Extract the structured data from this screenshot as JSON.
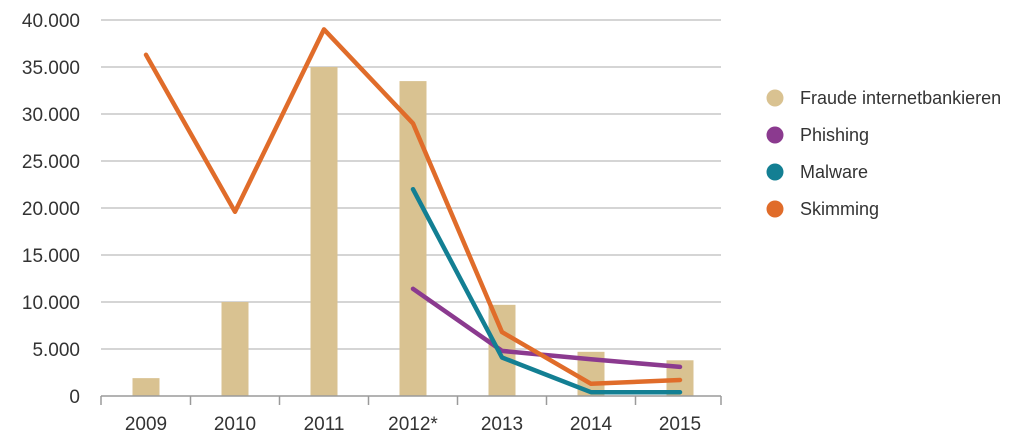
{
  "chart_data": {
    "type": "bar",
    "categories": [
      "2009",
      "2010",
      "2011",
      "2012*",
      "2013",
      "2014",
      "2015"
    ],
    "ylim": [
      0,
      40000
    ],
    "yticks": [
      {
        "value": 0,
        "label": "0"
      },
      {
        "value": 5000,
        "label": "5.000"
      },
      {
        "value": 10000,
        "label": "10.000"
      },
      {
        "value": 15000,
        "label": "15.000"
      },
      {
        "value": 20000,
        "label": "20.000"
      },
      {
        "value": 25000,
        "label": "25.000"
      },
      {
        "value": 30000,
        "label": "30.000"
      },
      {
        "value": 35000,
        "label": "35.000"
      },
      {
        "value": 40000,
        "label": "40.000"
      }
    ],
    "grid": true,
    "legend_position": "right",
    "series": [
      {
        "name": "Fraude internetbankieren",
        "type": "bar",
        "color": "#d9c291",
        "values": [
          1900,
          10000,
          35000,
          33500,
          9700,
          4700,
          3800
        ]
      },
      {
        "name": "Phishing",
        "type": "line",
        "color": "#8b3a8f",
        "values": [
          null,
          null,
          null,
          11400,
          4800,
          3900,
          3100
        ]
      },
      {
        "name": "Malware",
        "type": "line",
        "color": "#137f93",
        "values": [
          null,
          null,
          null,
          22000,
          4100,
          400,
          400
        ]
      },
      {
        "name": "Skimming",
        "type": "line",
        "color": "#e06c2a",
        "values": [
          36300,
          19600,
          39000,
          29000,
          6800,
          1300,
          1700
        ]
      }
    ]
  }
}
